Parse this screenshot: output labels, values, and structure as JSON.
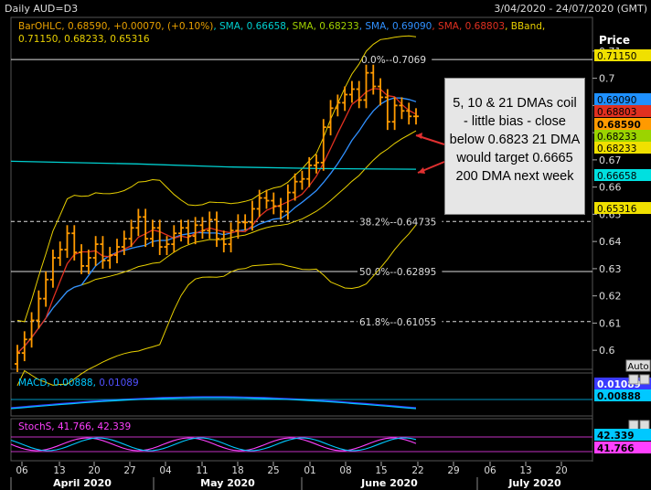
{
  "header": {
    "symbol": "Daily AUD=D3",
    "date_range": "3/04/2020 - 24/07/2020 (GMT)"
  },
  "price_panel": {
    "price_label": "Price",
    "auto_label": "Auto",
    "legend_line1": [
      {
        "text": "BarOHLC, 0.68590, +0.00070, (+0.10%)",
        "color": "#e8a000"
      },
      {
        "text": "SMA, 0.66658",
        "color": "#00d0d0"
      },
      {
        "text": "SMA, 0.68233",
        "color": "#a0d000"
      },
      {
        "text": "SMA, 0.69090",
        "color": "#3090ff"
      },
      {
        "text": "SMA, 0.68803",
        "color": "#e03020"
      },
      {
        "text": "BBand,",
        "color": "#e8d000"
      }
    ],
    "legend_line2": "0.71150, 0.68233, 0.65316",
    "right_tags": [
      {
        "value": "0.71150",
        "bg": "#f0e000",
        "fg": "#000"
      },
      {
        "value": "0.69090",
        "bg": "#1e90ff",
        "fg": "#000"
      },
      {
        "value": "0.68803",
        "bg": "#e03020",
        "fg": "#000"
      },
      {
        "value": "0.68590",
        "bg": "#ff9a00",
        "fg": "#000"
      },
      {
        "value": "0.68233",
        "bg": "#9bd400",
        "fg": "#000"
      },
      {
        "value": "0.68233",
        "bg": "#f0e000",
        "fg": "#000"
      },
      {
        "value": "0.66658",
        "bg": "#00e0e0",
        "fg": "#000"
      },
      {
        "value": "0.65316",
        "bg": "#f0e000",
        "fg": "#000"
      }
    ],
    "fib_levels": [
      {
        "label": "0.0%--0.7069",
        "value": 0.7069,
        "style": "solid"
      },
      {
        "label": "38.2%--0.64735",
        "value": 0.64735,
        "style": "dashed"
      },
      {
        "label": "50.0%--0.62895",
        "value": 0.62895,
        "style": "solid"
      },
      {
        "label": "61.8%--0.61055",
        "value": 0.61055,
        "style": "dashed"
      }
    ],
    "annotation": "5, 10 & 21 DMAs coil - little bias - close below 0.6823 21 DMA would target 0.6665 200 DMA next week"
  },
  "macd_panel": {
    "legend": "MACD, 0.00888",
    "legend_second": "0.01089",
    "tags": [
      {
        "value": "0.01089",
        "bg": "#3a3aff",
        "fg": "#fff"
      },
      {
        "value": "0.00888",
        "bg": "#00c8ff",
        "fg": "#000"
      }
    ]
  },
  "stoch_panel": {
    "legend": "StochS, 41.766, 42.339",
    "tags": [
      {
        "value": "42.339",
        "bg": "#00c8ff",
        "fg": "#000"
      },
      {
        "value": "41.766",
        "bg": "#ff40ff",
        "fg": "#000"
      }
    ]
  },
  "x_axis": {
    "day_ticks": [
      "06",
      "13",
      "20",
      "27",
      "04",
      "11",
      "18",
      "25",
      "01",
      "08",
      "15",
      "22",
      "29",
      "06",
      "13",
      "20"
    ],
    "months": [
      "April 2020",
      "May 2020",
      "June 2020",
      "July 2020"
    ]
  },
  "chart_data": {
    "type": "ohlc",
    "title": "Daily AUD=D3",
    "x_range": [
      "2020-04-03",
      "2020-07-24"
    ],
    "ylim": [
      0.593,
      0.716
    ],
    "y_ticks": [
      0.6,
      0.61,
      0.62,
      0.63,
      0.64,
      0.65,
      0.66,
      0.67,
      0.68,
      0.69,
      0.7,
      0.71
    ],
    "bars_close": [
      0.599,
      0.604,
      0.611,
      0.619,
      0.626,
      0.634,
      0.637,
      0.643,
      0.636,
      0.631,
      0.634,
      0.639,
      0.633,
      0.635,
      0.638,
      0.641,
      0.645,
      0.649,
      0.641,
      0.645,
      0.638,
      0.639,
      0.643,
      0.645,
      0.642,
      0.646,
      0.644,
      0.648,
      0.641,
      0.639,
      0.644,
      0.647,
      0.647,
      0.652,
      0.656,
      0.655,
      0.653,
      0.651,
      0.658,
      0.662,
      0.663,
      0.668,
      0.669,
      0.682,
      0.689,
      0.691,
      0.694,
      0.696,
      0.692,
      0.702,
      0.697,
      0.693,
      0.684,
      0.69,
      0.688,
      0.686,
      0.686
    ],
    "series": [
      {
        "name": "SMA",
        "last": 0.66658,
        "color": "#00d0d0"
      },
      {
        "name": "SMA",
        "last": 0.68233,
        "color": "#a0d000"
      },
      {
        "name": "SMA",
        "last": 0.6909,
        "color": "#3090ff"
      },
      {
        "name": "SMA",
        "last": 0.68803,
        "color": "#e03020"
      },
      {
        "name": "BBand",
        "last": [
          0.7115,
          0.68233,
          0.65316
        ],
        "color": "#e8d000"
      }
    ]
  }
}
